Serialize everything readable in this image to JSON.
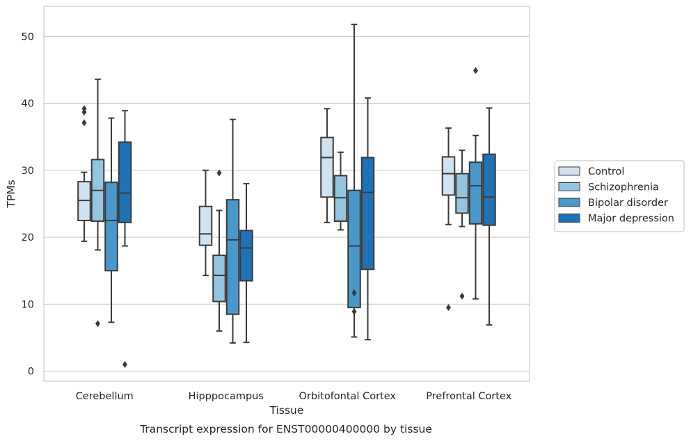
{
  "chart_data": {
    "type": "box",
    "title": "",
    "caption": "Transcript expression for ENST00000400000 by tissue",
    "xlabel": "Tissue",
    "ylabel": "TPMs",
    "ylim": [
      -1.5,
      54.5
    ],
    "yticks": [
      0,
      10,
      20,
      30,
      40,
      50
    ],
    "grid": "horizontal",
    "legend_position": "outside-right",
    "categories": [
      "Cerebellum",
      "Hipppocampus",
      "Orbitofontal Cortex",
      "Prefrontal Cortex"
    ],
    "series": [
      {
        "name": "Control",
        "color": "#d0e1f2",
        "boxes": [
          {
            "whislo": 19.4,
            "q1": 22.5,
            "med": 25.5,
            "q3": 28.3,
            "whishi": 29.7,
            "fliers": [
              39.2,
              38.7,
              37.1
            ]
          },
          {
            "whislo": 14.3,
            "q1": 18.8,
            "med": 20.5,
            "q3": 24.6,
            "whishi": 30.0,
            "fliers": []
          },
          {
            "whislo": 22.2,
            "q1": 26.0,
            "med": 31.9,
            "q3": 34.9,
            "whishi": 39.2,
            "fliers": []
          },
          {
            "whislo": 21.9,
            "q1": 26.3,
            "med": 29.5,
            "q3": 32.0,
            "whishi": 36.3,
            "fliers": [
              9.5
            ]
          }
        ]
      },
      {
        "name": "Schizophrenia",
        "color": "#94c4df",
        "boxes": [
          {
            "whislo": 18.1,
            "q1": 22.4,
            "med": 27.0,
            "q3": 31.6,
            "whishi": 43.6,
            "fliers": [
              7.1
            ]
          },
          {
            "whislo": 6.0,
            "q1": 10.4,
            "med": 14.3,
            "q3": 17.3,
            "whishi": 24.0,
            "fliers": [
              29.6
            ]
          },
          {
            "whislo": 21.1,
            "q1": 22.4,
            "med": 25.9,
            "q3": 29.2,
            "whishi": 32.7,
            "fliers": []
          },
          {
            "whislo": 21.6,
            "q1": 23.6,
            "med": 25.9,
            "q3": 29.5,
            "whishi": 33.0,
            "fliers": [
              11.2
            ]
          }
        ]
      },
      {
        "name": "Bipolar disorder",
        "color": "#4a98c9",
        "boxes": [
          {
            "whislo": 7.3,
            "q1": 15.0,
            "med": 22.5,
            "q3": 28.2,
            "whishi": 37.8,
            "fliers": []
          },
          {
            "whislo": 4.2,
            "q1": 8.5,
            "med": 19.6,
            "q3": 25.6,
            "whishi": 37.6,
            "fliers": []
          },
          {
            "whislo": 5.1,
            "q1": 9.5,
            "med": 18.7,
            "q3": 27.0,
            "whishi": 51.8,
            "fliers": [
              11.7,
              8.9
            ]
          },
          {
            "whislo": 10.8,
            "q1": 22.0,
            "med": 27.7,
            "q3": 31.2,
            "whishi": 35.2,
            "fliers": [
              44.9
            ]
          }
        ]
      },
      {
        "name": "Major depression",
        "color": "#2171b5",
        "boxes": [
          {
            "whislo": 18.7,
            "q1": 22.2,
            "med": 26.6,
            "q3": 34.2,
            "whishi": 38.9,
            "fliers": [
              1.0
            ]
          },
          {
            "whislo": 4.3,
            "q1": 13.5,
            "med": 18.4,
            "q3": 21.0,
            "whishi": 28.0,
            "fliers": []
          },
          {
            "whislo": 4.7,
            "q1": 15.2,
            "med": 26.7,
            "q3": 31.9,
            "whishi": 40.8,
            "fliers": []
          },
          {
            "whislo": 6.9,
            "q1": 21.8,
            "med": 26.0,
            "q3": 32.4,
            "whishi": 39.3,
            "fliers": []
          }
        ]
      }
    ]
  }
}
